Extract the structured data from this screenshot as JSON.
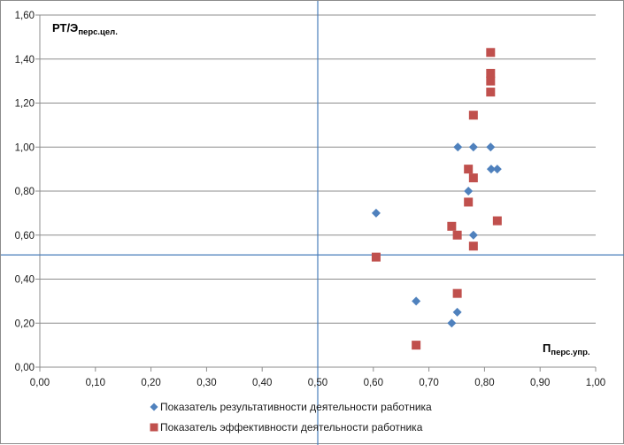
{
  "chart_data": {
    "type": "scatter",
    "title": "",
    "xlabel": {
      "main": "П",
      "sub": "перс.упр."
    },
    "ylabel": {
      "main": "РТ/Э",
      "sub": "перс.цел."
    },
    "xlim": [
      0,
      1
    ],
    "ylim": [
      0,
      1.6
    ],
    "x_ticks": [
      0,
      0.1,
      0.2,
      0.3,
      0.4,
      0.5,
      0.6,
      0.7,
      0.8,
      0.9,
      1.0
    ],
    "x_tick_labels": [
      "0,00",
      "0,10",
      "0,20",
      "0,30",
      "0,40",
      "0,50",
      "0,60",
      "0,70",
      "0,80",
      "0,90",
      "1,00"
    ],
    "y_ticks": [
      0,
      0.2,
      0.4,
      0.6,
      0.8,
      1.0,
      1.2,
      1.4,
      1.6
    ],
    "y_tick_labels": [
      "0,00",
      "0,20",
      "0,40",
      "0,60",
      "0,80",
      "1,00",
      "1,20",
      "1,40",
      "1,60"
    ],
    "grid": "horizontal",
    "legend_position": "bottom",
    "reference_lines": {
      "x": 0.5,
      "y": 0.51
    },
    "series": [
      {
        "name": "Показатель результативности деятельности работника",
        "marker": "diamond",
        "color": "#4f81bd",
        "points": [
          [
            0.605,
            0.7
          ],
          [
            0.677,
            0.3
          ],
          [
            0.741,
            0.2
          ],
          [
            0.751,
            0.25
          ],
          [
            0.752,
            1.0
          ],
          [
            0.771,
            0.8
          ],
          [
            0.78,
            1.0
          ],
          [
            0.78,
            0.6
          ],
          [
            0.811,
            1.0
          ],
          [
            0.812,
            0.9
          ],
          [
            0.823,
            0.9
          ]
        ]
      },
      {
        "name": "Показатель эффективности деятельности работника",
        "marker": "square",
        "color": "#c0504d",
        "points": [
          [
            0.605,
            0.5
          ],
          [
            0.677,
            0.1
          ],
          [
            0.741,
            0.64
          ],
          [
            0.751,
            0.6
          ],
          [
            0.751,
            0.335
          ],
          [
            0.771,
            0.9
          ],
          [
            0.771,
            0.75
          ],
          [
            0.78,
            1.145
          ],
          [
            0.78,
            0.86
          ],
          [
            0.78,
            0.55
          ],
          [
            0.811,
            1.43
          ],
          [
            0.811,
            1.335
          ],
          [
            0.811,
            1.3
          ],
          [
            0.811,
            1.25
          ],
          [
            0.823,
            0.665
          ]
        ]
      }
    ]
  }
}
